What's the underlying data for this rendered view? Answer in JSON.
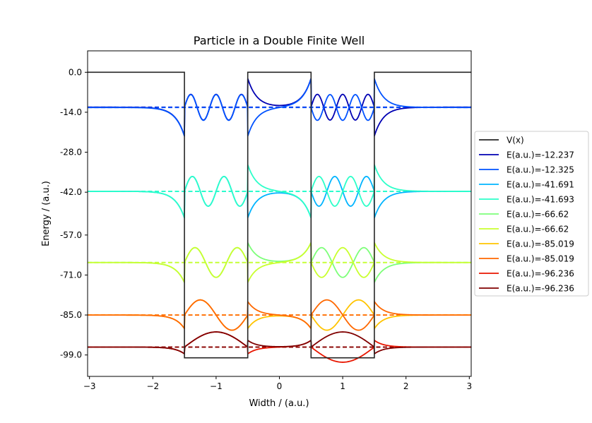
{
  "chart_data": {
    "type": "line",
    "title": "Particle in a Double Finite Well",
    "xlabel": "Width / (a.u.)",
    "ylabel": "Energy / (a.u.)",
    "xlim": [
      -3.03,
      3.03
    ],
    "ylim": [
      -106.5,
      7.5
    ],
    "x_ticks": [
      -3,
      -2,
      -1,
      0,
      1,
      2,
      3
    ],
    "x_tick_labels": [
      "−3",
      "−2",
      "−1",
      "0",
      "1",
      "2",
      "3"
    ],
    "y_ticks": [
      0.0,
      -14.0,
      -28.0,
      -42.0,
      -57.0,
      -71.0,
      -85.0,
      -99.0
    ],
    "y_tick_labels": [
      "0.0",
      "-14.0",
      "-28.0",
      "-42.0",
      "-57.0",
      "-71.0",
      "-85.0",
      "-99.0"
    ],
    "grid": false,
    "legend_position": "right, outside plot",
    "potential": {
      "name": "V(x)",
      "color": "#262626",
      "x": [
        -3.03,
        -1.5,
        -1.5,
        -0.5,
        -0.5,
        0.5,
        0.5,
        1.5,
        1.5,
        3.03
      ],
      "y": [
        0,
        0,
        -100,
        -100,
        0,
        0,
        -100,
        -100,
        0,
        0
      ]
    },
    "wells": [
      [
        -1.5,
        -0.5
      ],
      [
        0.5,
        1.5
      ]
    ],
    "series": [
      {
        "name": "E(a.u.)=-12.237",
        "energy": -12.237,
        "color": "#0000b3",
        "k": 5.0,
        "parity": "even",
        "amplitude": 4.5
      },
      {
        "name": "E(a.u.)=-12.325",
        "energy": -12.325,
        "color": "#0052ff",
        "k": 5.0,
        "parity": "odd",
        "amplitude": 4.5
      },
      {
        "name": "E(a.u.)=-41.691",
        "energy": -41.691,
        "color": "#00b4ff",
        "k": 4.0,
        "parity": "odd",
        "amplitude": 5.2
      },
      {
        "name": "E(a.u.)=-41.693",
        "energy": -41.693,
        "color": "#2cffc9",
        "k": 4.0,
        "parity": "even",
        "amplitude": 5.2
      },
      {
        "name": "E(a.u.)=-66.62",
        "energy": -66.62,
        "color": "#7dff79",
        "k": 3.0,
        "parity": "even",
        "amplitude": 5.2
      },
      {
        "name": "E(a.u.)=-66.62",
        "energy": -66.62,
        "color": "#c9ff2e",
        "k": 3.0,
        "parity": "odd",
        "amplitude": 5.2
      },
      {
        "name": "E(a.u.)=-85.019",
        "energy": -85.019,
        "color": "#ffc400",
        "k": 2.0,
        "parity": "odd",
        "amplitude": 5.3
      },
      {
        "name": "E(a.u.)=-85.019",
        "energy": -85.019,
        "color": "#ff6800",
        "k": 2.0,
        "parity": "even",
        "amplitude": 5.3
      },
      {
        "name": "E(a.u.)=-96.236",
        "energy": -96.236,
        "color": "#e81600",
        "k": 1.0,
        "parity": "odd",
        "amplitude": 5.3
      },
      {
        "name": "E(a.u.)=-96.236",
        "energy": -96.236,
        "color": "#800000",
        "k": 1.0,
        "parity": "even",
        "amplitude": 5.3
      }
    ]
  }
}
